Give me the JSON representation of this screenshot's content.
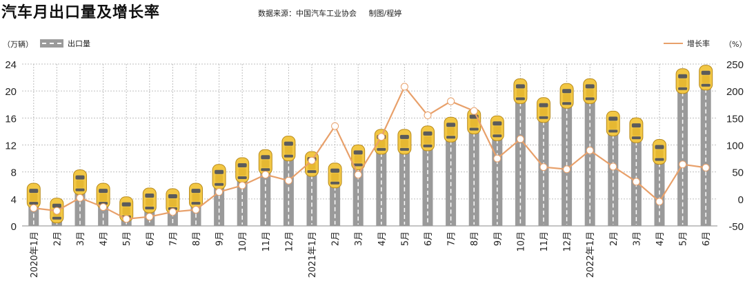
{
  "header": {
    "title": "汽车月出口量及增长率",
    "source": "数据来源：中国汽车工业协会",
    "author": "制图/程婷"
  },
  "units": {
    "left": "（万辆）",
    "right": "（%）"
  },
  "colors": {
    "bar": "#9a9a9a",
    "line": "#e8a06a",
    "car_body": "#f2c744",
    "grid": "#bdbdbd"
  },
  "chart_data": {
    "type": "bar",
    "categories": [
      "2020年1月",
      "2月",
      "3月",
      "4月",
      "5月",
      "6月",
      "7月",
      "8月",
      "9月",
      "10月",
      "11月",
      "12月",
      "2021年1月",
      "2月",
      "3月",
      "4月",
      "5月",
      "6月",
      "7月",
      "8月",
      "9月",
      "10月",
      "11月",
      "12月",
      "2022年1月",
      "2月",
      "3月",
      "4月",
      "5月",
      "6月"
    ],
    "series": [
      {
        "name": "出口量",
        "axis": "left",
        "type": "bar",
        "values": [
          5.5,
          3.3,
          7.5,
          5.5,
          3.5,
          4.8,
          4.7,
          5.5,
          8.3,
          9.3,
          10.5,
          12.5,
          10.2,
          8.5,
          11.2,
          13.5,
          13.5,
          14.0,
          15.3,
          16.5,
          15.5,
          21.0,
          18.2,
          20.3,
          21.0,
          16.2,
          15.2,
          12.0,
          22.5,
          23.0
        ]
      },
      {
        "name": "增长率",
        "axis": "right",
        "type": "line",
        "values": [
          -17,
          -22,
          2,
          -15,
          -37,
          -33,
          -24,
          -20,
          13,
          25,
          45,
          34,
          71,
          135,
          45,
          115,
          208,
          155,
          181,
          163,
          75,
          111,
          59,
          55,
          90,
          60,
          32,
          -5,
          64,
          58
        ]
      }
    ],
    "left_axis": {
      "ylim": [
        0,
        24
      ],
      "ticks": [
        0,
        4,
        8,
        12,
        16,
        20,
        24
      ]
    },
    "right_axis": {
      "ylim": [
        -50,
        250
      ],
      "ticks": [
        -50,
        0,
        50,
        100,
        150,
        200,
        250
      ]
    },
    "grid": true,
    "legend": "top"
  }
}
